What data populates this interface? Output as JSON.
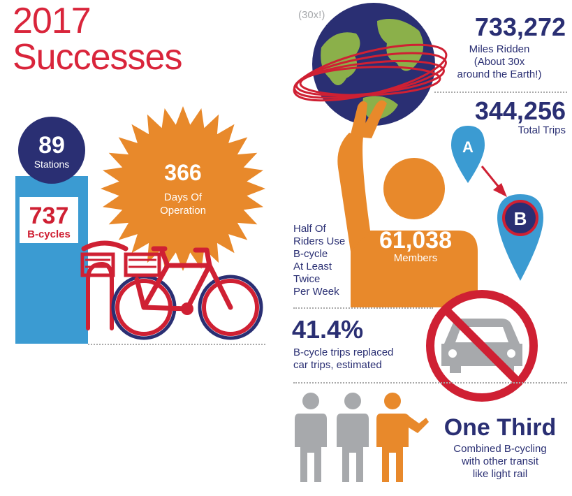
{
  "title": {
    "line1": "2017",
    "line2": "Successes"
  },
  "stations": {
    "value": "89",
    "label": "Stations"
  },
  "bcycles": {
    "value": "737",
    "label": "B-cycles"
  },
  "days": {
    "value": "366",
    "label_line1": "Days Of",
    "label_line2": "Operation"
  },
  "earth": {
    "note": "(30x!)"
  },
  "miles": {
    "value": "733,272",
    "label_line1": "Miles Ridden",
    "label_line2": "(About 30x",
    "label_line3": "around the Earth!)"
  },
  "trips": {
    "value": "344,256",
    "label": "Total Trips"
  },
  "pins": {
    "a": "A",
    "b": "B"
  },
  "half": {
    "lines": [
      "Half Of",
      "Riders Use",
      "B-cycle",
      "At Least",
      "Twice",
      "Per Week"
    ]
  },
  "members": {
    "value": "61,038",
    "label": "Members"
  },
  "replaced": {
    "value": "41.4%",
    "label_line1": "B-cycle trips replaced",
    "label_line2": "car trips, estimated"
  },
  "third": {
    "value": "One Third",
    "label_line1": "Combined B-cycling",
    "label_line2": "with other transit",
    "label_line3": "like light rail"
  },
  "colors": {
    "red": "#cf2033",
    "navy": "#2a2f73",
    "orange": "#e8892b",
    "blue": "#3b9bd2",
    "gray": "#a7a9ac"
  }
}
